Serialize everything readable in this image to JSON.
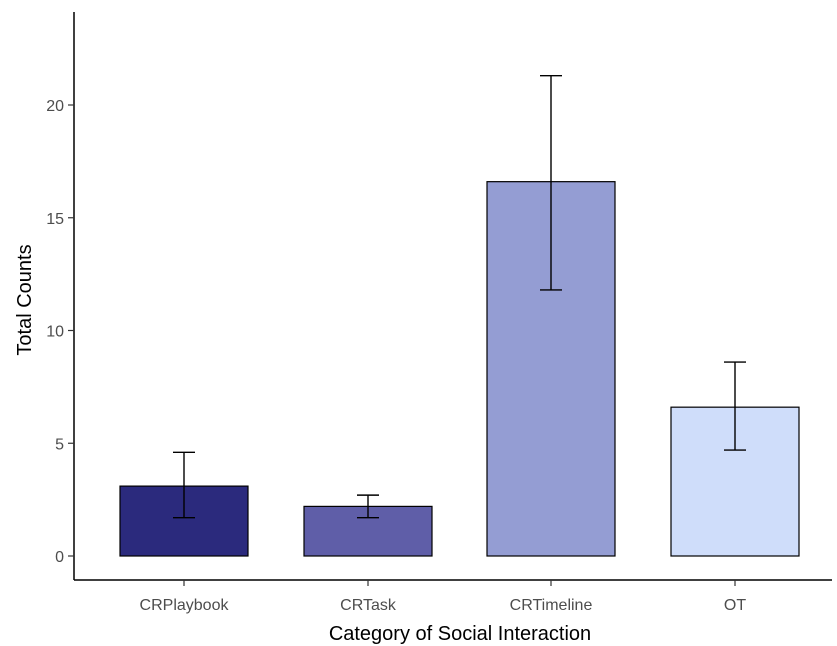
{
  "chart_data": {
    "type": "bar",
    "title": "",
    "xlabel": "Category of Social Interaction",
    "ylabel": "Total Counts",
    "categories": [
      "CRPlaybook",
      "CRTask",
      "CRTimeline",
      "OT"
    ],
    "values": [
      3.1,
      2.2,
      16.6,
      6.6
    ],
    "error_low": [
      1.7,
      1.7,
      11.8,
      4.7
    ],
    "error_high": [
      4.6,
      2.7,
      21.3,
      8.6
    ],
    "colors": [
      "#2b2a7d",
      "#5f5ea8",
      "#949dd3",
      "#cfddfa"
    ],
    "y_ticks": [
      "0",
      "5",
      "10",
      "15",
      "20"
    ],
    "ylim": [
      -1,
      24
    ],
    "grid": false,
    "legend": "none"
  }
}
